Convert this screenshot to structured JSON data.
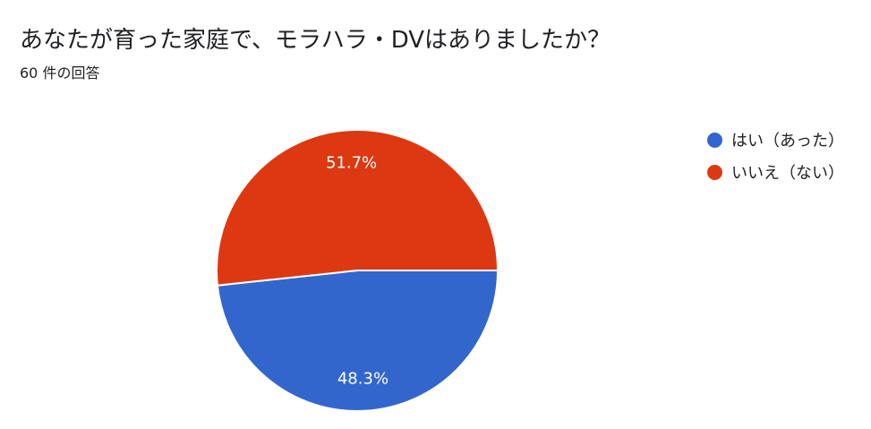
{
  "header": {
    "title": "あなたが育った家庭で、モラハラ・DVはありましたか？",
    "response_count": "60 件の回答"
  },
  "chart_data": {
    "type": "pie",
    "title": "",
    "slices": [
      {
        "label": "はい（あった）",
        "value": 48.3,
        "display": "48.3%",
        "color": "#3366cc"
      },
      {
        "label": "いいえ（ない）",
        "value": 51.7,
        "display": "51.7%",
        "color": "#dc3912"
      }
    ],
    "legend_position": "right"
  }
}
